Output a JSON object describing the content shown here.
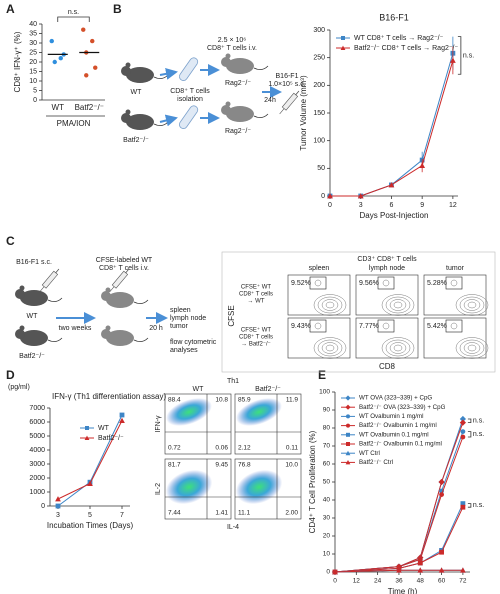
{
  "panel_letters": [
    "A",
    "B",
    "C",
    "D",
    "E"
  ],
  "panel_b_diagram": {
    "wt": "WT",
    "batf2": "Batf2⁻/⁻",
    "isolation": [
      "CD8⁺ T cells",
      "isolation"
    ],
    "transfer": [
      "2.5 × 10⁶",
      "CD8⁺ T cells i.v."
    ],
    "rag2": "Rag2⁻/⁻",
    "rag2_b": "Rag2⁻/⁻",
    "time": "24h",
    "tumor": [
      "B16-F1",
      "1.0×10⁵ s.c."
    ]
  },
  "panel_c_diagram": {
    "tumor": "B16-F1 s.c.",
    "transfer": [
      "CFSE-labeled WT",
      "CD8⁺ T cells i.v."
    ],
    "wt": "WT",
    "batf2": "Batf2⁻/⁻",
    "wait": "two weeks",
    "time": "20 h",
    "tissues": [
      "spleen",
      "lymph node",
      "tumor"
    ],
    "analysis": [
      "flow cytometric",
      "analyses"
    ]
  },
  "panel_c_flow": {
    "title": "CD3⁺ CD8⁺ T cells",
    "columns": [
      "spleen",
      "lymph node",
      "tumor"
    ],
    "rows": [
      {
        "label": [
          "CFSE⁺ WT",
          "CD8⁺ T cells",
          "→ WT"
        ],
        "gates": [
          "9.52%",
          "9.56%",
          "5.28%"
        ]
      },
      {
        "label": [
          "CFSE⁺ WT",
          "CD8⁺ T cells",
          "→ Batf2⁻/⁻"
        ],
        "gates": [
          "9.43%",
          "7.77%",
          "5.42%"
        ]
      }
    ],
    "y_label": "CFSE",
    "x_label": "CD8"
  },
  "panel_d_flow": {
    "title": "Th1",
    "columns": [
      "WT",
      "Batf2⁻/⁻"
    ],
    "rows": [
      {
        "y_label": "IFN-γ",
        "quadrants": [
          [
            "88.4",
            "10.8",
            "0.72",
            "0.06"
          ],
          [
            "85.9",
            "11.9",
            "2.12",
            "0.11"
          ]
        ]
      },
      {
        "y_label": "IL-2",
        "quadrants": [
          [
            "81.7",
            "9.45",
            "7.44",
            "1.41"
          ],
          [
            "76.8",
            "10.0",
            "11.1",
            "2.00"
          ]
        ]
      }
    ],
    "x_label": "IL-4"
  },
  "chart_data": [
    {
      "type": "dot",
      "y_label": "CD8⁺ IFN-γ⁺ (%)",
      "x_label": "PMA/ION",
      "annotation": "n.s.",
      "ylim": [
        0,
        40
      ],
      "yticks": [
        0,
        5,
        10,
        15,
        20,
        25,
        30,
        35,
        40
      ],
      "groups": [
        {
          "name": "WT",
          "color": "#2f8fde",
          "values": [
            31,
            22,
            20,
            24
          ],
          "mean": 24
        },
        {
          "name": "Batf2⁻/⁻",
          "color": "#d4502a",
          "values": [
            37,
            31,
            25,
            17,
            13
          ],
          "mean": 25
        }
      ]
    },
    {
      "type": "line",
      "title": "B16-F1",
      "x_label": "Days Post-Injection",
      "y_label": "Tumor Volume (mm³)",
      "x": [
        0,
        3,
        6,
        9,
        12
      ],
      "xlim": [
        0,
        12.5
      ],
      "xticks": [
        0,
        3,
        6,
        9,
        12
      ],
      "ylim": [
        0,
        300
      ],
      "yticks": [
        0,
        50,
        100,
        150,
        200,
        250,
        300
      ],
      "legend": "upper left",
      "annotations": [
        "n.s."
      ],
      "series": [
        {
          "name": "WT CD8⁺ T cells → Rag2⁻/⁻",
          "color": "#3d85c6",
          "marker": "square",
          "values": [
            0,
            0,
            20,
            65,
            258
          ],
          "errors": [
            0,
            0,
            3,
            15,
            30
          ]
        },
        {
          "name": "Batf2⁻/⁻ CD8⁺ T cells → Rag2⁻/⁻",
          "color": "#cc2a2a",
          "marker": "triangle",
          "values": [
            0,
            0,
            20,
            55,
            245
          ],
          "errors": [
            0,
            0,
            3,
            12,
            25
          ]
        }
      ]
    },
    {
      "type": "line",
      "title": "IFN-γ (Th1 differentiation assay)",
      "y_label": "(pg/ml)",
      "x_label": "Incubation Times (Days)",
      "x": [
        3,
        5,
        7
      ],
      "xlim": [
        2.5,
        7.5
      ],
      "xticks": [
        3,
        5,
        7
      ],
      "ylim": [
        0,
        7000
      ],
      "yticks": [
        0,
        1000,
        2000,
        3000,
        4000,
        5000,
        6000,
        7000
      ],
      "legend": "upper left",
      "series": [
        {
          "name": "WT",
          "color": "#3d85c6",
          "marker": "square",
          "values": [
            0,
            1700,
            6500
          ]
        },
        {
          "name": "Batf2⁻/⁻",
          "color": "#cc2a2a",
          "marker": "triangle",
          "values": [
            500,
            1600,
            6100
          ]
        }
      ]
    },
    {
      "type": "line",
      "y_label": "CD4⁺ T Cell Proliferation (%)",
      "x_label": "Time (h)",
      "x": [
        0,
        36,
        48,
        60,
        72
      ],
      "xlim": [
        0,
        76
      ],
      "xticks": [
        0,
        12,
        24,
        36,
        48,
        60,
        72
      ],
      "ylim": [
        0,
        100
      ],
      "yticks": [
        0,
        10,
        20,
        30,
        40,
        50,
        60,
        70,
        80,
        90,
        100
      ],
      "legend": "upper left",
      "annotations": [
        "n.s.",
        "n.s.",
        "n.s."
      ],
      "series": [
        {
          "name": "WT OVA (323–339) + CpG",
          "color": "#3d85c6",
          "marker": "diamond",
          "values": [
            0,
            3,
            8,
            50,
            85
          ]
        },
        {
          "name": "Batf2⁻/⁻ OVA (323–339) + CpG",
          "color": "#cc2a2a",
          "marker": "diamond",
          "values": [
            0,
            3,
            8,
            50,
            83
          ]
        },
        {
          "name": "WT Ovalbumin 1 mg/ml",
          "color": "#3d85c6",
          "marker": "circle",
          "values": [
            0,
            3,
            7,
            45,
            78
          ]
        },
        {
          "name": "Batf2⁻/⁻ Ovalbumin 1 mg/ml",
          "color": "#cc2a2a",
          "marker": "circle",
          "values": [
            0,
            3,
            7,
            43,
            75
          ]
        },
        {
          "name": "WT Ovalbumin 0.1 mg/ml",
          "color": "#3d85c6",
          "marker": "square",
          "values": [
            0,
            2,
            5,
            12,
            38
          ]
        },
        {
          "name": "Batf2⁻/⁻ Ovalbumin 0.1 mg/ml",
          "color": "#cc2a2a",
          "marker": "square",
          "values": [
            0,
            2,
            5,
            11,
            36
          ]
        },
        {
          "name": "WT Ctrl",
          "color": "#3d85c6",
          "marker": "triangle",
          "values": [
            0,
            1,
            1,
            1,
            1
          ]
        },
        {
          "name": "Batf2⁻/⁻ Ctrl",
          "color": "#cc2a2a",
          "marker": "triangle",
          "values": [
            0,
            1,
            1,
            1,
            1
          ]
        }
      ]
    }
  ]
}
